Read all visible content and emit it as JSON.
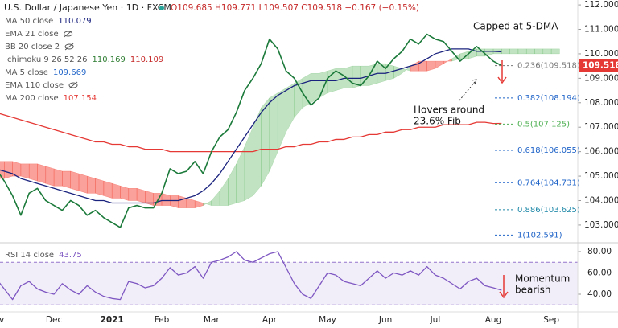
{
  "chart_data": [
    {
      "type": "line",
      "title": "U.S. Dollar / Japanese Yen · 1D · FXCM",
      "ohlc": "O109.685 H109.771 L109.507 C109.518 −0.167 (−0.15%)",
      "categories": [
        "Nov",
        null,
        null,
        null,
        null,
        null,
        null,
        "Dec",
        null,
        null,
        null,
        null,
        null,
        null,
        "2021",
        null,
        null,
        null,
        null,
        null,
        "Feb",
        null,
        null,
        null,
        null,
        null,
        "Mar",
        null,
        null,
        null,
        null,
        null,
        null,
        "Apr",
        null,
        null,
        null,
        null,
        null,
        null,
        "May",
        null,
        null,
        null,
        null,
        null,
        null,
        "Jun",
        null,
        null,
        null,
        null,
        null,
        "Jul",
        null,
        null,
        null,
        null,
        null,
        null,
        "Aug",
        null,
        null,
        null,
        null,
        null,
        null,
        "Sep",
        null
      ],
      "series": [
        {
          "color": "#1b7a3a",
          "values": [
            105.3,
            104.8,
            104.2,
            103.4,
            104.3,
            104.5,
            104.0,
            103.8,
            103.6,
            104.0,
            103.8,
            103.4,
            103.6,
            103.3,
            103.1,
            102.9,
            103.7,
            103.8,
            103.7,
            103.7,
            104.3,
            105.3,
            105.1,
            105.2,
            105.6,
            105.1,
            106.0,
            106.6,
            106.9,
            107.6,
            108.5,
            109.0,
            109.6,
            110.6,
            110.2,
            109.3,
            109.0,
            108.4,
            107.9,
            108.2,
            109.0,
            109.3,
            109.1,
            108.8,
            108.7,
            109.1,
            109.7,
            109.4,
            109.8,
            110.1,
            110.6,
            110.4,
            110.8,
            110.6,
            110.5,
            110.1,
            109.7,
            110.0,
            110.3,
            110.0,
            109.7,
            109.518,
            null,
            null,
            null,
            null,
            null,
            null,
            null
          ]
        },
        {
          "name": "MA 50 close",
          "color": "#1a237e",
          "values": [
            105.3,
            105.2,
            105.1,
            104.9,
            104.8,
            104.7,
            104.6,
            104.5,
            104.4,
            104.3,
            104.2,
            104.1,
            104.0,
            104.0,
            103.9,
            103.9,
            103.9,
            103.9,
            103.9,
            103.9,
            104.0,
            104.0,
            104.0,
            104.1,
            104.2,
            104.4,
            104.7,
            105.1,
            105.6,
            106.1,
            106.6,
            107.1,
            107.6,
            108.0,
            108.3,
            108.5,
            108.7,
            108.8,
            108.9,
            108.9,
            108.9,
            108.9,
            109.0,
            109.0,
            109.0,
            109.1,
            109.2,
            109.2,
            109.3,
            109.4,
            109.5,
            109.6,
            109.8,
            110.0,
            110.1,
            110.2,
            110.2,
            110.2,
            110.1,
            110.1,
            110.1,
            110.079,
            null,
            null,
            null,
            null,
            null,
            null,
            null
          ]
        },
        {
          "name": "MA 200 close",
          "color": "#e53935",
          "values": [
            107.6,
            107.5,
            107.4,
            107.3,
            107.2,
            107.1,
            107.0,
            106.9,
            106.8,
            106.7,
            106.6,
            106.5,
            106.4,
            106.4,
            106.3,
            106.3,
            106.2,
            106.2,
            106.1,
            106.1,
            106.1,
            106.0,
            106.0,
            106.0,
            106.0,
            106.0,
            106.0,
            106.0,
            106.0,
            106.0,
            106.0,
            106.0,
            106.1,
            106.1,
            106.1,
            106.2,
            106.2,
            106.3,
            106.3,
            106.4,
            106.4,
            106.5,
            106.5,
            106.6,
            106.6,
            106.7,
            106.7,
            106.8,
            106.8,
            106.9,
            106.9,
            107.0,
            107.0,
            107.0,
            107.1,
            107.1,
            107.1,
            107.1,
            107.2,
            107.2,
            107.15,
            107.154,
            null,
            null,
            null,
            null,
            null,
            null,
            null
          ]
        }
      ],
      "cloud": {
        "up_color": "rgba(76,175,80,0.35)",
        "down_color": "rgba(244,67,54,0.5)",
        "span_a": [
          104.9,
          104.9,
          105.0,
          105.0,
          104.9,
          104.8,
          104.7,
          104.6,
          104.6,
          104.5,
          104.4,
          104.3,
          104.3,
          104.2,
          104.1,
          104.1,
          104.0,
          104.0,
          103.9,
          103.8,
          103.8,
          103.8,
          103.7,
          103.7,
          103.7,
          103.8,
          104.0,
          104.4,
          104.9,
          105.5,
          106.2,
          107.0,
          107.8,
          108.2,
          108.4,
          108.6,
          108.8,
          109.0,
          109.2,
          109.2,
          109.3,
          109.4,
          109.4,
          109.5,
          109.5,
          109.5,
          109.6,
          109.6,
          109.5,
          109.4,
          109.3,
          109.3,
          109.3,
          109.4,
          109.6,
          109.8,
          110.0,
          110.1,
          110.2,
          110.2,
          110.2,
          110.2,
          110.2,
          110.2,
          110.2,
          110.2,
          110.2,
          110.2,
          110.2
        ],
        "span_b": [
          105.6,
          105.6,
          105.6,
          105.5,
          105.5,
          105.5,
          105.4,
          105.3,
          105.2,
          105.2,
          105.1,
          105.0,
          104.9,
          104.8,
          104.7,
          104.6,
          104.5,
          104.5,
          104.4,
          104.3,
          104.3,
          104.2,
          104.2,
          104.1,
          104.0,
          103.9,
          103.8,
          103.8,
          103.8,
          103.9,
          104.0,
          104.2,
          104.6,
          105.2,
          106.0,
          106.8,
          107.4,
          107.8,
          108.0,
          108.2,
          108.4,
          108.5,
          108.6,
          108.6,
          108.7,
          108.7,
          108.8,
          108.9,
          109.0,
          109.2,
          109.5,
          109.7,
          109.7,
          109.7,
          109.7,
          109.7,
          109.8,
          109.8,
          109.9,
          109.9,
          110.0,
          110.0,
          110.0,
          110.0,
          110.0,
          110.0,
          110.0,
          110.0,
          110.0
        ]
      },
      "legend": [
        {
          "label": "MA 50 close",
          "values": [
            110.079
          ],
          "colors": [
            "#1a237e"
          ]
        },
        {
          "label": "EMA 21 close",
          "hidden": true
        },
        {
          "label": "BB 20 close 2",
          "hidden": true
        },
        {
          "label": "Ichimoku 9 26 52 26",
          "values": [
            110.169,
            110.109
          ],
          "colors": [
            "#2e7d32",
            "#c62828"
          ]
        },
        {
          "label": "MA 5 close",
          "values": [
            109.669
          ],
          "colors": [
            "#1e63c8"
          ]
        },
        {
          "label": "EMA 110 close",
          "hidden": true
        },
        {
          "label": "MA 200 close",
          "values": [
            107.154
          ],
          "colors": [
            "#e53935"
          ]
        }
      ],
      "fib": [
        {
          "label": "0.236(109.518)",
          "value": 109.518,
          "color": "#787878"
        },
        {
          "label": "0.382(108.194)",
          "value": 108.194,
          "color": "#1e63c8"
        },
        {
          "label": "0.5(107.125)",
          "value": 107.125,
          "color": "#4caf50"
        },
        {
          "label": "0.618(106.055)",
          "value": 106.055,
          "color": "#1e63c8"
        },
        {
          "label": "0.764(104.731)",
          "value": 104.731,
          "color": "#1e63c8"
        },
        {
          "label": "0.886(103.625)",
          "value": 103.625,
          "color": "#1e88a8"
        },
        {
          "label": "1(102.591)",
          "value": 102.591,
          "color": "#1e63c8"
        }
      ],
      "annotations": [
        "Capped at 5-DMA",
        "Hovers around",
        "23.6% Fib"
      ],
      "ylim": [
        102.34,
        112.2
      ],
      "yticks": [
        {
          "value": 103,
          "label": "103.000"
        },
        {
          "value": 104,
          "label": "104.000"
        },
        {
          "value": 105,
          "label": "105.000"
        },
        {
          "value": 106,
          "label": "106.000"
        },
        {
          "value": 107,
          "label": "107.000"
        },
        {
          "value": 108,
          "label": "108.000"
        },
        {
          "value": 109,
          "label": "109.000"
        },
        {
          "value": 110,
          "label": "110.000"
        },
        {
          "value": 111,
          "label": "111.000"
        },
        {
          "value": 112,
          "label": "112.000"
        }
      ]
    },
    {
      "type": "line",
      "series": [
        {
          "name": "RSI 14 close",
          "color": "#7e57c2",
          "values": [
            55,
            45,
            35,
            48,
            52,
            45,
            42,
            40,
            50,
            44,
            40,
            48,
            42,
            38,
            36,
            35,
            52,
            50,
            46,
            48,
            55,
            65,
            58,
            60,
            66,
            55,
            70,
            72,
            75,
            80,
            72,
            70,
            74,
            78,
            80,
            65,
            50,
            40,
            36,
            48,
            60,
            58,
            52,
            50,
            48,
            55,
            62,
            55,
            60,
            58,
            62,
            58,
            66,
            58,
            55,
            50,
            45,
            52,
            55,
            48,
            46,
            43.75
          ]
        }
      ],
      "band": [
        30,
        70
      ],
      "band_color": "rgba(126,87,194,0.1)",
      "annotations": [
        "Momentum",
        "bearish"
      ],
      "ylim": [
        23.4,
        86.8
      ],
      "yticks": [
        {
          "value": 40,
          "label": "40.00"
        },
        {
          "value": 60,
          "label": "60.00"
        },
        {
          "value": 80,
          "label": "80.00"
        }
      ]
    }
  ]
}
